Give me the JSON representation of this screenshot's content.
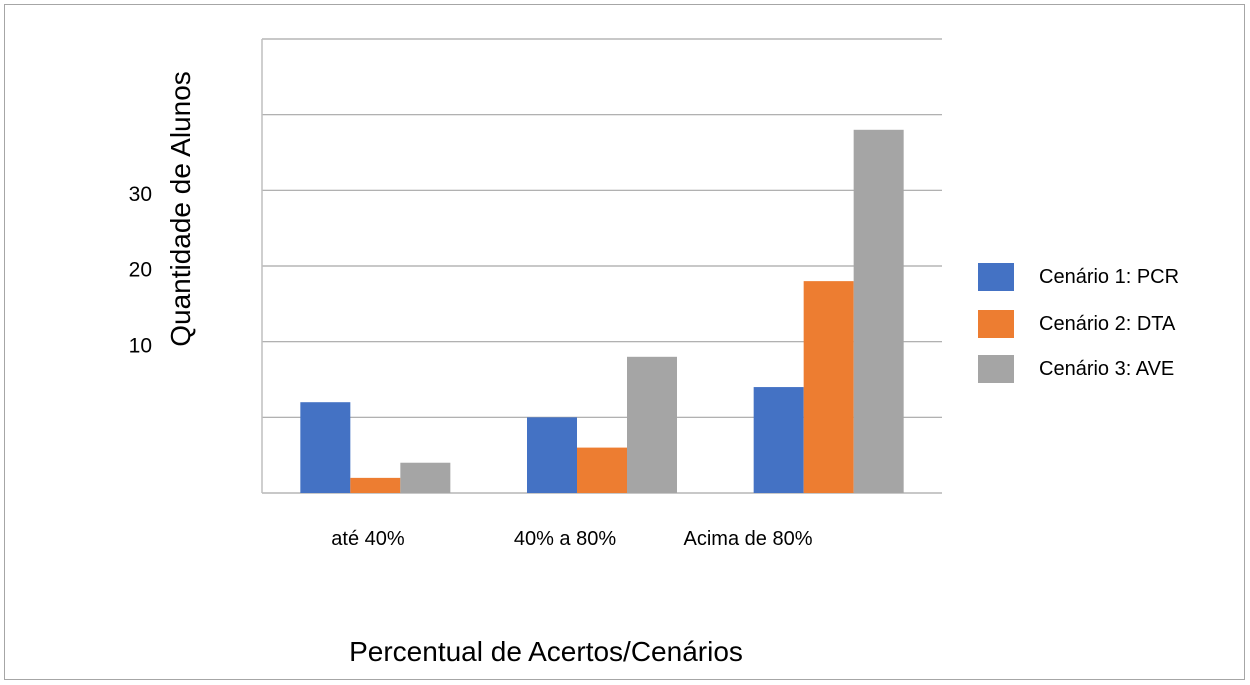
{
  "chart_data": {
    "type": "bar",
    "title": "",
    "xlabel": "Percentual de Acertos/Cenários",
    "ylabel": "Quantidade de Alunos",
    "categories": [
      "até 40%",
      "40% a 80%",
      "Acima de 80%"
    ],
    "series": [
      {
        "name": "Cenário 1: PCR",
        "color": "#4472c4",
        "values": [
          12,
          10,
          14
        ]
      },
      {
        "name": "Cenário 2: DTA",
        "color": "#ed7d31",
        "values": [
          2,
          6,
          28
        ]
      },
      {
        "name": "Cenário 3: AVE",
        "color": "#a5a5a5",
        "values": [
          4,
          18,
          48
        ]
      }
    ],
    "ylim": [
      0,
      60
    ],
    "gridlines": [
      0,
      10,
      20,
      30,
      40,
      50,
      60
    ],
    "ytick_labels": [
      {
        "value": 10,
        "text": "10"
      },
      {
        "value": 20,
        "text": "20"
      },
      {
        "value": 30,
        "text": "30"
      }
    ],
    "grid": true,
    "legend_position": "right"
  }
}
